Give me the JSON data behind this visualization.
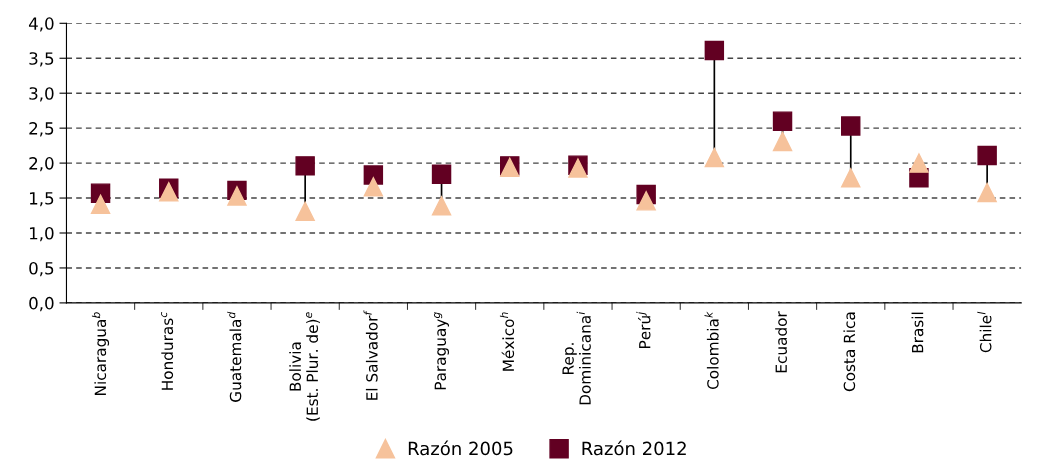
{
  "chart_data": {
    "type": "scatter",
    "categories": [
      "Nicaragua$^{b}$",
      "Honduras$^{c}$",
      "Guatemala$^{d}$",
      "Bolivia\n(Est. Plur. de)$^{e}$",
      "El Salvador$^{f}$",
      "Paraguay$^{g}$",
      "México$^{h}$",
      "Rep.\nDominicana$^{i}$",
      "Perú$^{j}$",
      "Colombia$^{k}$",
      "Ecuador",
      "Costa Rica",
      "Brasil",
      "Chile$^{l}$"
    ],
    "series": [
      {
        "name": "Razón 2005",
        "color": "#f6c29b",
        "marker": "triangle",
        "values": [
          1.41,
          1.59,
          1.53,
          1.31,
          1.66,
          1.39,
          1.94,
          1.93,
          1.46,
          2.08,
          2.31,
          1.79,
          2.0,
          1.58
        ]
      },
      {
        "name": "Razón 2012",
        "color": "#620022",
        "marker": "square",
        "values": [
          1.57,
          1.64,
          1.61,
          1.96,
          1.83,
          1.84,
          1.96,
          1.97,
          1.55,
          3.61,
          2.6,
          2.53,
          1.79,
          2.11
        ]
      }
    ],
    "ylim": [
      0,
      4
    ],
    "yticks": [
      {
        "value": 0,
        "label": "0,0"
      },
      {
        "value": 0.5,
        "label": "0,5"
      },
      {
        "value": 1,
        "label": "1,0"
      },
      {
        "value": 1.5,
        "label": "1,5"
      },
      {
        "value": 2,
        "label": "2,0"
      },
      {
        "value": 2.5,
        "label": "2,5"
      },
      {
        "value": 3,
        "label": "3,0"
      },
      {
        "value": 3.5,
        "label": "3,5"
      },
      {
        "value": 4,
        "label": "4,0"
      }
    ],
    "grid": "y",
    "legend": "bottom"
  }
}
